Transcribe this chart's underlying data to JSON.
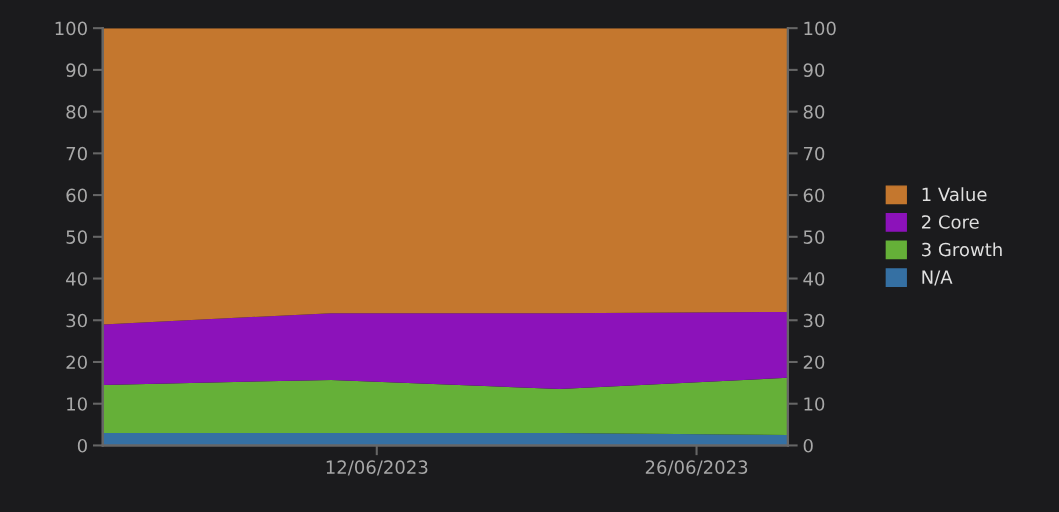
{
  "chart_data": {
    "type": "area",
    "stacked": true,
    "x": [
      "2023-05-31",
      "2023-06-10",
      "2023-06-20",
      "2023-06-30"
    ],
    "series": [
      {
        "name": "N/A",
        "color": "#3570a3",
        "values": [
          3,
          3,
          3,
          2.5
        ]
      },
      {
        "name": "3 Growth",
        "color": "#65b038",
        "values": [
          11.5,
          12.7,
          10.5,
          13.7
        ]
      },
      {
        "name": "2 Core",
        "color": "#8c12ba",
        "values": [
          14.5,
          16,
          18.2,
          15.8
        ]
      },
      {
        "name": "1 Value",
        "color": "#c4772e",
        "values": [
          71,
          68.3,
          68.3,
          68
        ]
      }
    ],
    "xlim": [
      "2023-05-31",
      "2023-06-30"
    ],
    "xticks": [
      {
        "value": "2023-06-12",
        "label": "12/06/2023"
      },
      {
        "value": "2023-06-26",
        "label": "26/06/2023"
      }
    ],
    "ylim": [
      0,
      100
    ],
    "yticks": [
      0,
      10,
      20,
      30,
      40,
      50,
      60,
      70,
      80,
      90,
      100
    ],
    "y2lim": [
      0,
      100
    ],
    "y2ticks": [
      0,
      10,
      20,
      30,
      40,
      50,
      60,
      70,
      80,
      90,
      100
    ],
    "grid": false,
    "legend": "right"
  }
}
